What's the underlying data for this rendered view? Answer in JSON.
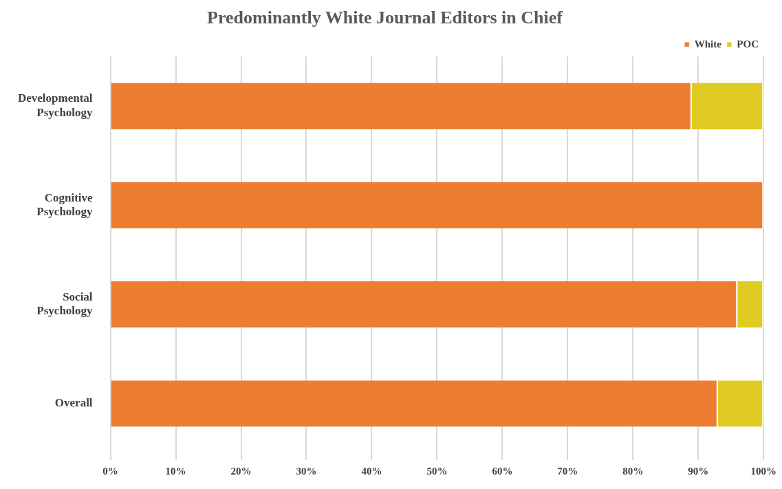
{
  "chart_data": {
    "type": "bar",
    "title": "Predominantly White Journal Editors in Chief",
    "orientation": "horizontal",
    "stacked": true,
    "categories": [
      "Developmental Psychology",
      "Cognitive Psychology",
      "Social Psychology",
      "Overall"
    ],
    "series": [
      {
        "name": "White",
        "color": "#ed7d31",
        "values": [
          89,
          100,
          96,
          93
        ]
      },
      {
        "name": "POC",
        "color": "#dfcb21",
        "values": [
          11,
          0,
          4,
          7
        ]
      }
    ],
    "xlim": [
      0,
      100
    ],
    "xticks": [
      {
        "value": 0,
        "label": "0%"
      },
      {
        "value": 10,
        "label": "10%"
      },
      {
        "value": 20,
        "label": "20%"
      },
      {
        "value": 30,
        "label": "30%"
      },
      {
        "value": 40,
        "label": "40%"
      },
      {
        "value": 50,
        "label": "50%"
      },
      {
        "value": 60,
        "label": "60%"
      },
      {
        "value": 70,
        "label": "70%"
      },
      {
        "value": 80,
        "label": "80%"
      },
      {
        "value": 90,
        "label": "90%"
      },
      {
        "value": 100,
        "label": "100%"
      }
    ],
    "grid": "x",
    "legend": "top right"
  }
}
